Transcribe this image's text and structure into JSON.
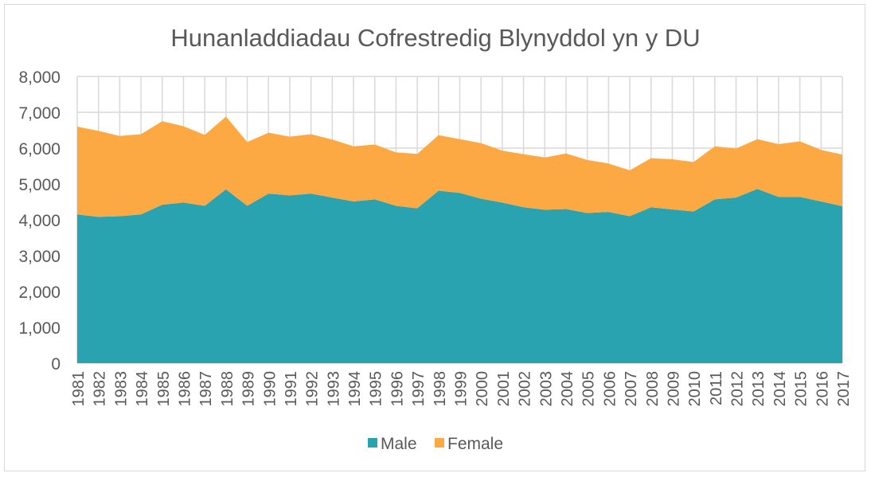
{
  "chart_data": {
    "type": "area",
    "stacked": true,
    "title": "Hunanladdiadau Cofrestredig Blynyddol yn y DU",
    "xlabel": "",
    "ylabel": "",
    "ylim": [
      0,
      8000
    ],
    "yticks": [
      0,
      1000,
      2000,
      3000,
      4000,
      5000,
      6000,
      7000,
      8000
    ],
    "ytick_labels": [
      "0",
      "1,000",
      "2,000",
      "3,000",
      "4,000",
      "5,000",
      "6,000",
      "7,000",
      "8,000"
    ],
    "grid": true,
    "legend": "bottom",
    "categories": [
      "1981",
      "1982",
      "1983",
      "1984",
      "1985",
      "1986",
      "1987",
      "1988",
      "1989",
      "1990",
      "1991",
      "1992",
      "1993",
      "1994",
      "1995",
      "1996",
      "1997",
      "1998",
      "1999",
      "2000",
      "2001",
      "2002",
      "2003",
      "2004",
      "2005",
      "2006",
      "2007",
      "2008",
      "2009",
      "2010",
      "2011",
      "2012",
      "2013",
      "2014",
      "2015",
      "2016",
      "2017"
    ],
    "series": [
      {
        "name": "Male",
        "color": "#2aa3b0",
        "values": [
          4150,
          4080,
          4100,
          4150,
          4420,
          4480,
          4390,
          4850,
          4390,
          4730,
          4680,
          4730,
          4620,
          4510,
          4570,
          4390,
          4320,
          4810,
          4750,
          4590,
          4480,
          4350,
          4280,
          4300,
          4190,
          4220,
          4100,
          4350,
          4290,
          4230,
          4570,
          4620,
          4860,
          4640,
          4640,
          4510,
          4380
        ]
      },
      {
        "name": "Female",
        "color": "#fca843",
        "values": [
          2450,
          2400,
          2240,
          2240,
          2330,
          2130,
          1980,
          2030,
          1780,
          1700,
          1640,
          1660,
          1620,
          1540,
          1530,
          1490,
          1520,
          1550,
          1500,
          1550,
          1450,
          1480,
          1460,
          1550,
          1480,
          1350,
          1280,
          1370,
          1400,
          1380,
          1480,
          1370,
          1390,
          1470,
          1550,
          1440,
          1440
        ]
      }
    ]
  }
}
